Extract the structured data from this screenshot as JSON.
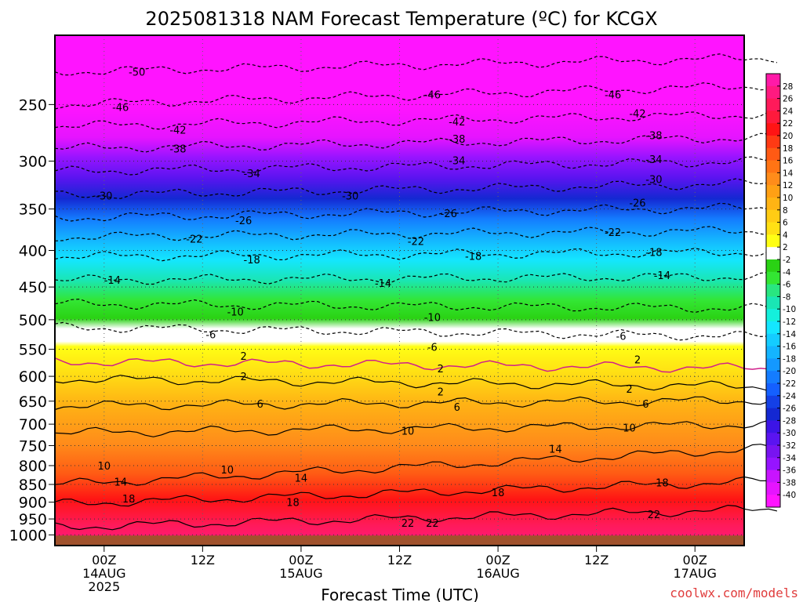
{
  "chart_data": {
    "type": "heatmap",
    "title": "2025081318 NAM Forecast Temperature (ºC) for KCGX",
    "xlabel": "Forecast Time (UTC)",
    "ylabel": "",
    "watermark": "coolwx.com/models",
    "x_range_hours": [
      -6,
      78
    ],
    "x_ticks": [
      {
        "hour": 0,
        "label": "00Z",
        "sub1": "14AUG",
        "sub2": "2025"
      },
      {
        "hour": 12,
        "label": "12Z",
        "sub1": "",
        "sub2": ""
      },
      {
        "hour": 24,
        "label": "00Z",
        "sub1": "15AUG",
        "sub2": ""
      },
      {
        "hour": 36,
        "label": "12Z",
        "sub1": "",
        "sub2": ""
      },
      {
        "hour": 48,
        "label": "00Z",
        "sub1": "16AUG",
        "sub2": ""
      },
      {
        "hour": 60,
        "label": "12Z",
        "sub1": "",
        "sub2": ""
      },
      {
        "hour": 72,
        "label": "00Z",
        "sub1": "17AUG",
        "sub2": ""
      }
    ],
    "y_scale": "log-pressure",
    "y_range_hpa": [
      1035,
      200
    ],
    "y_ticks": [
      {
        "p": 250,
        "label": "250"
      },
      {
        "p": 300,
        "label": "300"
      },
      {
        "p": 350,
        "label": "350"
      },
      {
        "p": 400,
        "label": "400"
      },
      {
        "p": 450,
        "label": "450"
      },
      {
        "p": 500,
        "label": "500"
      },
      {
        "p": 550,
        "label": "550"
      },
      {
        "p": 600,
        "label": "600"
      },
      {
        "p": 650,
        "label": "650"
      },
      {
        "p": 700,
        "label": "700"
      },
      {
        "p": 750,
        "label": "750"
      },
      {
        "p": 800,
        "label": "800"
      },
      {
        "p": 850,
        "label": "850"
      },
      {
        "p": 900,
        "label": "900"
      },
      {
        "p": 950,
        "label": "950"
      },
      {
        "p": 1000,
        "label": "1000"
      }
    ],
    "ground_color": "#a0522d",
    "ground_top_hpa": 1002,
    "contour_lines": [
      {
        "value": -50,
        "p0": 225,
        "p1": 215
      },
      {
        "value": -46,
        "p0": 250,
        "p1": 235
      },
      {
        "value": -42,
        "p0": 268,
        "p1": 258
      },
      {
        "value": -38,
        "p0": 288,
        "p1": 278
      },
      {
        "value": -34,
        "p0": 310,
        "p1": 300
      },
      {
        "value": -30,
        "p0": 335,
        "p1": 322
      },
      {
        "value": -26,
        "p0": 360,
        "p1": 348
      },
      {
        "value": -22,
        "p0": 383,
        "p1": 375
      },
      {
        "value": -18,
        "p0": 408,
        "p1": 402
      },
      {
        "value": -14,
        "p0": 440,
        "p1": 435
      },
      {
        "value": -10,
        "p0": 475,
        "p1": 482
      },
      {
        "value": -6,
        "p0": 512,
        "p1": 528
      },
      {
        "value": 2,
        "p0": 572,
        "p1": 585,
        "color": "#d0208a"
      },
      {
        "value": 2,
        "p0": 605,
        "p1": 620
      },
      {
        "value": 6,
        "p0": 660,
        "p1": 648
      },
      {
        "value": 10,
        "p0": 720,
        "p1": 700
      },
      {
        "value": 14,
        "p0": 850,
        "p1": 755
      },
      {
        "value": 18,
        "p0": 905,
        "p1": 840
      },
      {
        "value": 22,
        "p0": 975,
        "p1": 920
      }
    ],
    "contour_labels": [
      {
        "text": "-50",
        "hour": 4,
        "p": 225
      },
      {
        "text": "-46",
        "hour": 40,
        "p": 242
      },
      {
        "text": "-46",
        "hour": 62,
        "p": 242
      },
      {
        "text": "-46",
        "hour": 2,
        "p": 252
      },
      {
        "text": "-42",
        "hour": 9,
        "p": 271
      },
      {
        "text": "-42",
        "hour": 43,
        "p": 264
      },
      {
        "text": "-42",
        "hour": 65,
        "p": 257
      },
      {
        "text": "-38",
        "hour": 9,
        "p": 288
      },
      {
        "text": "-38",
        "hour": 43,
        "p": 279
      },
      {
        "text": "-38",
        "hour": 67,
        "p": 276
      },
      {
        "text": "-34",
        "hour": 18,
        "p": 312
      },
      {
        "text": "-34",
        "hour": 43,
        "p": 299
      },
      {
        "text": "-34",
        "hour": 67,
        "p": 298
      },
      {
        "text": "-30",
        "hour": 0,
        "p": 335
      },
      {
        "text": "-30",
        "hour": 30,
        "p": 335
      },
      {
        "text": "-30",
        "hour": 67,
        "p": 318
      },
      {
        "text": "-26",
        "hour": 17,
        "p": 363
      },
      {
        "text": "-26",
        "hour": 42,
        "p": 355
      },
      {
        "text": "-26",
        "hour": 65,
        "p": 343
      },
      {
        "text": "-22",
        "hour": 11,
        "p": 385
      },
      {
        "text": "-22",
        "hour": 38,
        "p": 388
      },
      {
        "text": "-22",
        "hour": 62,
        "p": 377
      },
      {
        "text": "-18",
        "hour": 18,
        "p": 412
      },
      {
        "text": "-18",
        "hour": 45,
        "p": 407
      },
      {
        "text": "-18",
        "hour": 67,
        "p": 402
      },
      {
        "text": "-14",
        "hour": 1,
        "p": 440
      },
      {
        "text": "-14",
        "hour": 34,
        "p": 444
      },
      {
        "text": "-14",
        "hour": 68,
        "p": 433
      },
      {
        "text": "-10",
        "hour": 16,
        "p": 487
      },
      {
        "text": "-10",
        "hour": 40,
        "p": 496
      },
      {
        "text": "-6",
        "hour": 13,
        "p": 524
      },
      {
        "text": "-6",
        "hour": 40,
        "p": 546
      },
      {
        "text": "-6",
        "hour": 63,
        "p": 527
      },
      {
        "text": "2",
        "hour": 17,
        "p": 562
      },
      {
        "text": "2",
        "hour": 41,
        "p": 585
      },
      {
        "text": "2",
        "hour": 65,
        "p": 568
      },
      {
        "text": "2",
        "hour": 17,
        "p": 600
      },
      {
        "text": "2",
        "hour": 41,
        "p": 630
      },
      {
        "text": "2",
        "hour": 64,
        "p": 625
      },
      {
        "text": "6",
        "hour": 19,
        "p": 655
      },
      {
        "text": "6",
        "hour": 43,
        "p": 662
      },
      {
        "text": "6",
        "hour": 66,
        "p": 655
      },
      {
        "text": "10",
        "hour": 0,
        "p": 800
      },
      {
        "text": "10",
        "hour": 15,
        "p": 810
      },
      {
        "text": "10",
        "hour": 37,
        "p": 715
      },
      {
        "text": "10",
        "hour": 64,
        "p": 708
      },
      {
        "text": "14",
        "hour": 2,
        "p": 842
      },
      {
        "text": "14",
        "hour": 24,
        "p": 832
      },
      {
        "text": "14",
        "hour": 55,
        "p": 758
      },
      {
        "text": "18",
        "hour": 3,
        "p": 890
      },
      {
        "text": "18",
        "hour": 23,
        "p": 900
      },
      {
        "text": "18",
        "hour": 48,
        "p": 872
      },
      {
        "text": "18",
        "hour": 68,
        "p": 845
      },
      {
        "text": "22",
        "hour": 37,
        "p": 962
      },
      {
        "text": "22",
        "hour": 40,
        "p": 962
      },
      {
        "text": "22",
        "hour": 67,
        "p": 935
      }
    ],
    "legend": {
      "placement": "right",
      "levels": [
        28,
        26,
        24,
        22,
        20,
        18,
        16,
        14,
        12,
        10,
        8,
        6,
        4,
        2,
        -2,
        -4,
        -6,
        -8,
        -10,
        -12,
        -14,
        -16,
        -18,
        -20,
        -22,
        -24,
        -26,
        -28,
        -30,
        -32,
        -34,
        -36,
        -38,
        -40
      ],
      "colors": [
        "#ff1aa8",
        "#ff1a80",
        "#ff1a5a",
        "#ff1a3c",
        "#ff1414",
        "#ff3a14",
        "#ff5a14",
        "#ff7414",
        "#ff8c1a",
        "#ffa014",
        "#ffb414",
        "#ffcc14",
        "#ffe014",
        "#ffff14",
        "#ffffff",
        "#2ad214",
        "#33e633",
        "#29e680",
        "#1ae6b4",
        "#14f0dc",
        "#14e6ff",
        "#14ccff",
        "#14b4ff",
        "#1498ff",
        "#147cff",
        "#1460ff",
        "#1440e6",
        "#1428d2",
        "#3c14e6",
        "#5a14f0",
        "#7814f0",
        "#9614ff",
        "#c814ff",
        "#e614ff",
        "#ff14ff"
      ]
    },
    "grid": true
  }
}
